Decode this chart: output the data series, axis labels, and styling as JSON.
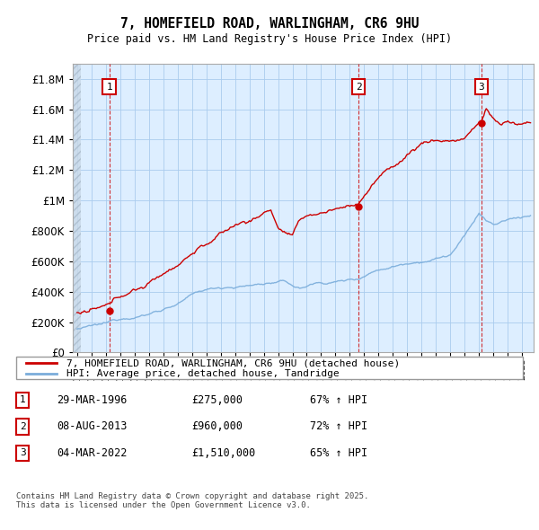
{
  "title": "7, HOMEFIELD ROAD, WARLINGHAM, CR6 9HU",
  "subtitle": "Price paid vs. HM Land Registry's House Price Index (HPI)",
  "ylim": [
    0,
    1900000
  ],
  "yticks": [
    0,
    200000,
    400000,
    600000,
    800000,
    1000000,
    1200000,
    1400000,
    1600000,
    1800000
  ],
  "ytick_labels": [
    "£0",
    "£200K",
    "£400K",
    "£600K",
    "£800K",
    "£1M",
    "£1.2M",
    "£1.4M",
    "£1.6M",
    "£1.8M"
  ],
  "xlim_start": 1993.7,
  "xlim_end": 2025.8,
  "sale_color": "#cc0000",
  "hpi_color": "#7aaddb",
  "vline_color": "#cc0000",
  "sale_dates": [
    1996.24,
    2013.6,
    2022.17
  ],
  "sale_prices": [
    275000,
    960000,
    1510000
  ],
  "sale_labels": [
    "1",
    "2",
    "3"
  ],
  "transaction_info": [
    {
      "label": "1",
      "date": "29-MAR-1996",
      "price": "£275,000",
      "hpi": "67% ↑ HPI"
    },
    {
      "label": "2",
      "date": "08-AUG-2013",
      "price": "£960,000",
      "hpi": "72% ↑ HPI"
    },
    {
      "label": "3",
      "date": "04-MAR-2022",
      "price": "£1,510,000",
      "hpi": "65% ↑ HPI"
    }
  ],
  "legend_line1": "7, HOMEFIELD ROAD, WARLINGHAM, CR6 9HU (detached house)",
  "legend_line2": "HPI: Average price, detached house, Tandridge",
  "footer": "Contains HM Land Registry data © Crown copyright and database right 2025.\nThis data is licensed under the Open Government Licence v3.0.",
  "bg_color": "#ffffff",
  "chart_bg": "#ddeeff",
  "grid_color": "#aaccee"
}
